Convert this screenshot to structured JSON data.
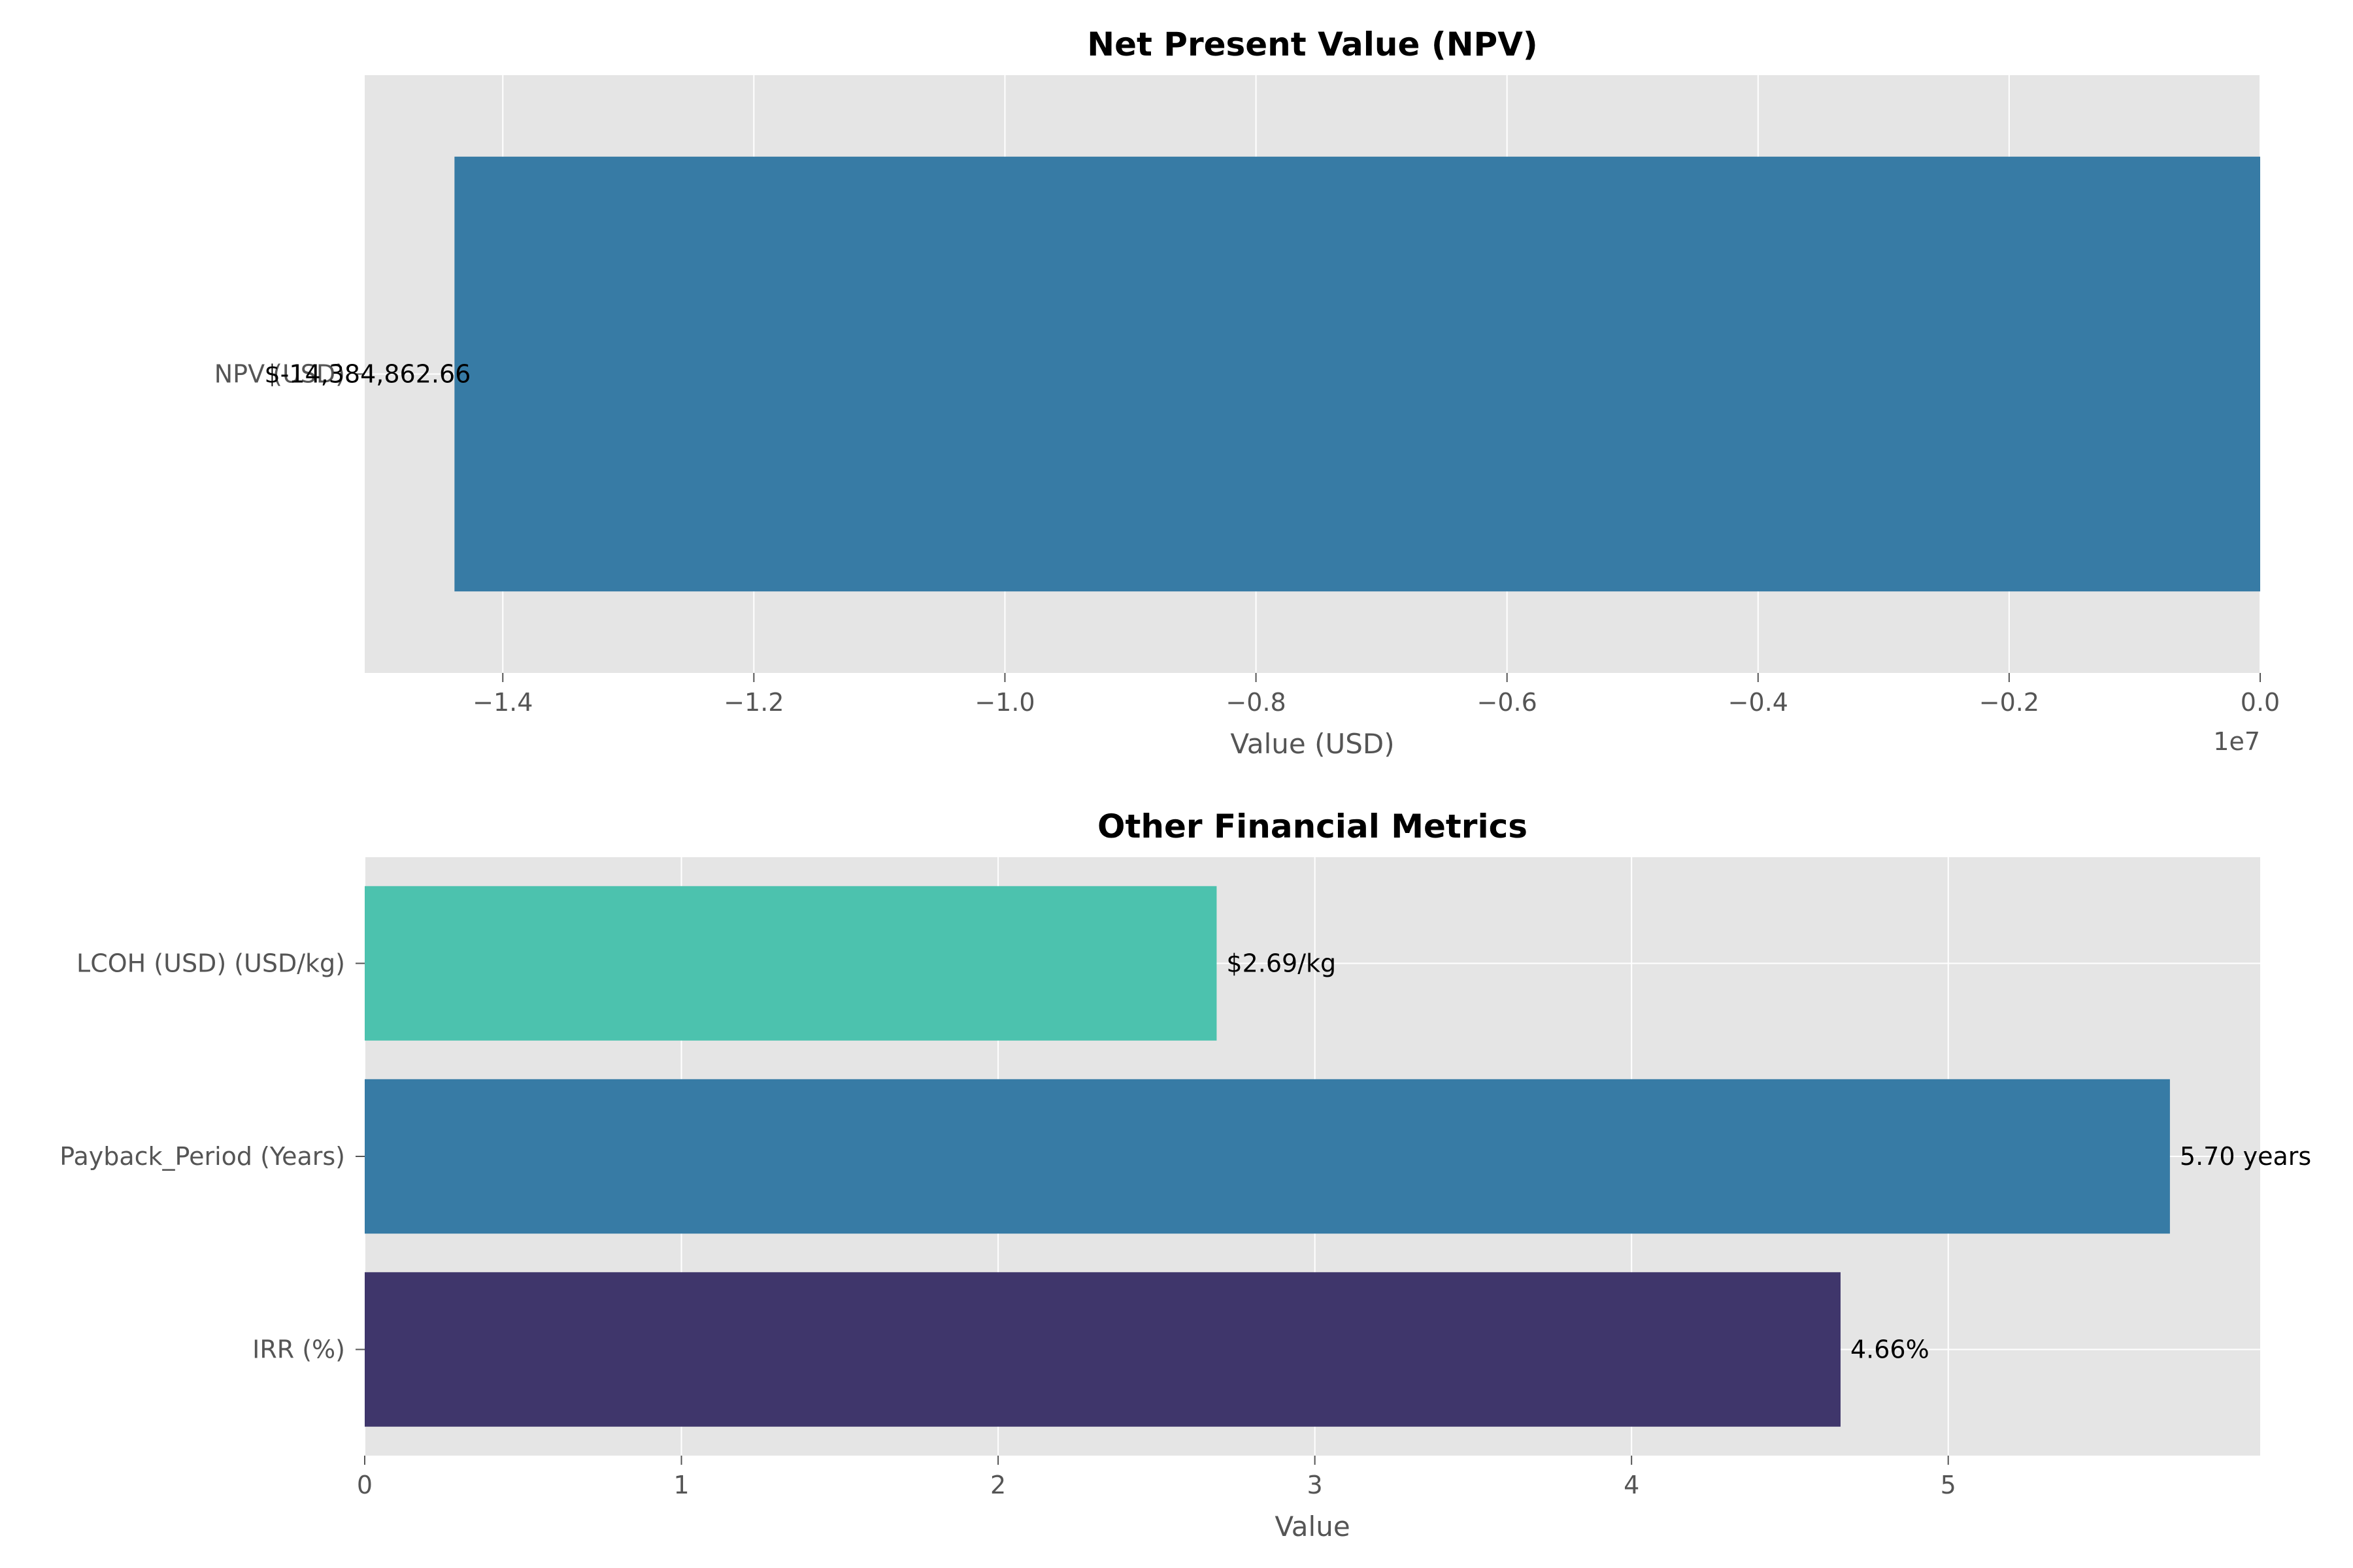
{
  "chart_data": [
    {
      "type": "bar",
      "orientation": "horizontal",
      "title": "Net Present Value (NPV)",
      "xlabel": "Value (USD)",
      "ylabel": "",
      "categories": [
        "NPV (USD)"
      ],
      "values": [
        -14384862.66
      ],
      "data_labels": [
        "$-14,384,862.66"
      ],
      "colors": [
        "#377ba5"
      ],
      "xlim": [
        -15100000,
        0
      ],
      "xticks": [
        -14000000,
        -12000000,
        -10000000,
        -8000000,
        -6000000,
        -4000000,
        -2000000,
        0
      ],
      "xtick_labels": [
        "−1.4",
        "−1.2",
        "−1.0",
        "−0.8",
        "−0.6",
        "−0.4",
        "−0.2",
        "0.0"
      ],
      "axis_offset_label": "1e7",
      "grid": true
    },
    {
      "type": "bar",
      "orientation": "horizontal",
      "title": "Other Financial Metrics",
      "xlabel": "Value",
      "ylabel": "",
      "categories": [
        "LCOH (USD) (USD/kg)",
        "Payback_Period (Years)",
        "IRR (%)"
      ],
      "values": [
        2.69,
        5.7,
        4.66
      ],
      "data_labels": [
        "$2.69/kg",
        "5.70 years",
        "4.66%"
      ],
      "colors": [
        "#4cc2ae",
        "#377ba5",
        "#3f366b"
      ],
      "xlim": [
        0,
        5.985
      ],
      "xticks": [
        0,
        1,
        2,
        3,
        4,
        5
      ],
      "xtick_labels": [
        "0",
        "1",
        "2",
        "3",
        "4",
        "5"
      ],
      "grid": true
    }
  ]
}
